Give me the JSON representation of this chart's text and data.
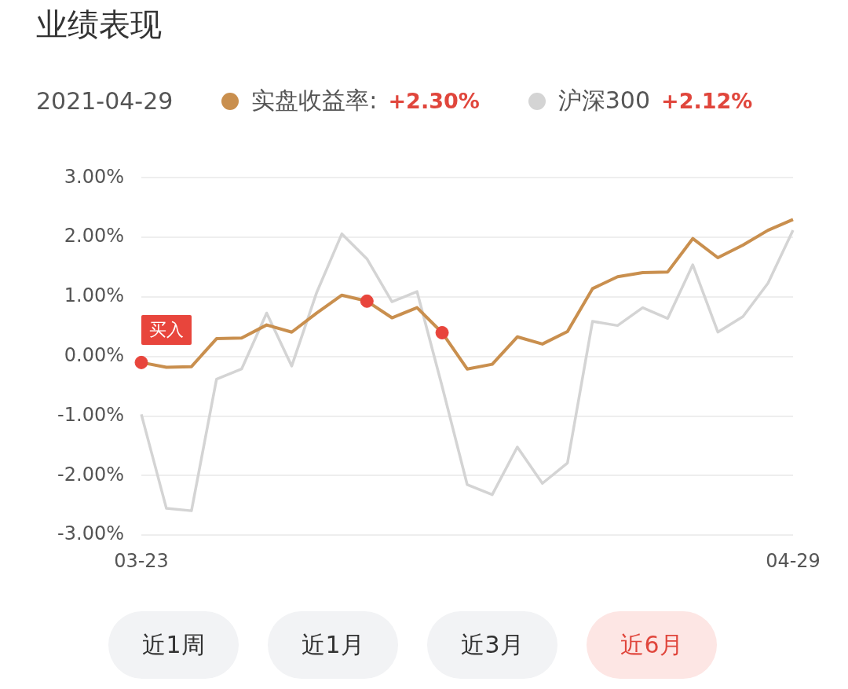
{
  "chart_data": {
    "type": "line",
    "title": "业绩表现",
    "categories": [
      "03-23",
      null,
      null,
      null,
      null,
      null,
      null,
      null,
      null,
      null,
      null,
      null,
      null,
      null,
      null,
      null,
      null,
      null,
      null,
      null,
      null,
      null,
      null,
      null,
      null,
      null,
      "04-29"
    ],
    "series": [
      {
        "name": "实盘收益率:",
        "color": "#c98f4e",
        "values": [
          -0.1,
          -0.18,
          -0.17,
          0.3,
          0.31,
          0.53,
          0.41,
          0.73,
          1.03,
          0.93,
          0.65,
          0.82,
          0.4,
          -0.21,
          -0.13,
          0.33,
          0.21,
          0.42,
          1.14,
          1.34,
          1.41,
          1.42,
          1.98,
          1.66,
          1.87,
          2.12,
          2.3
        ]
      },
      {
        "name": "沪深300",
        "color": "#d4d4d4",
        "values": [
          -0.97,
          -2.55,
          -2.59,
          -0.38,
          -0.21,
          0.73,
          -0.16,
          1.08,
          2.06,
          1.64,
          0.92,
          1.09,
          -0.5,
          -2.15,
          -2.32,
          -1.52,
          -2.13,
          -1.79,
          0.59,
          0.52,
          0.82,
          0.64,
          1.54,
          0.41,
          0.67,
          1.23,
          2.12
        ]
      },
      {
        "type": "scatter",
        "marker": "circle",
        "color": "#e8453c",
        "values": [
          -0.1,
          null,
          null,
          null,
          null,
          null,
          null,
          null,
          null,
          0.93,
          null,
          null,
          0.4,
          null,
          null,
          null,
          null,
          null,
          null,
          null,
          null,
          null,
          null,
          null,
          null,
          null,
          null
        ]
      }
    ],
    "ylim": [
      -3,
      3
    ],
    "yticks": [
      {
        "value": -3,
        "label": "-3.00%"
      },
      {
        "value": -2,
        "label": "-2.00%"
      },
      {
        "value": -1,
        "label": "-1.00%"
      },
      {
        "value": 0,
        "label": "0.00%"
      },
      {
        "value": 1,
        "label": "1.00%"
      },
      {
        "value": 2,
        "label": "2.00%"
      },
      {
        "value": 3,
        "label": "3.00%"
      }
    ],
    "grid": "y",
    "legend": "top left",
    "marker": "none",
    "line_style": "solid",
    "annotations": [
      "2021-04-29",
      "+2.30%",
      "+2.12%",
      "近1周",
      "近1月",
      "近3月",
      "近6月",
      {
        "text": "买入",
        "x": "03-23",
        "y": -0.1
      }
    ]
  }
}
